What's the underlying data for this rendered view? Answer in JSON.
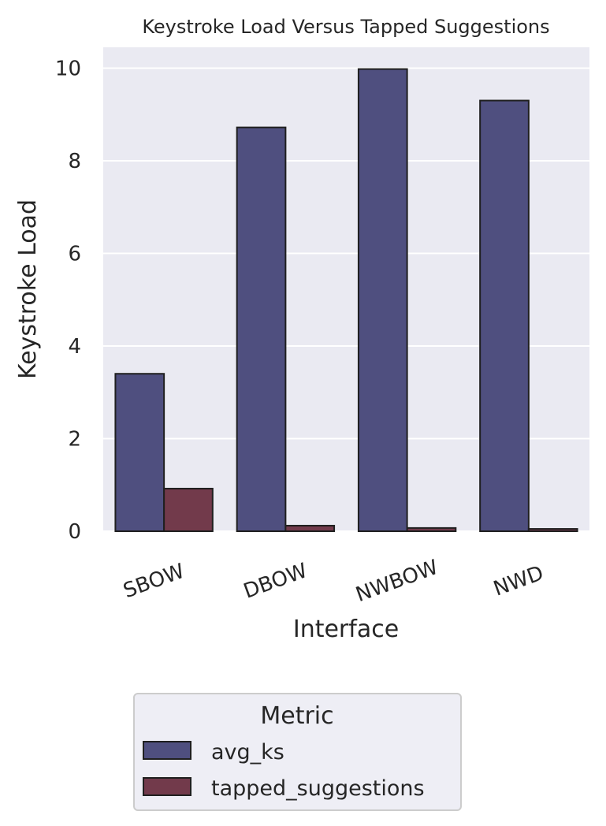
{
  "chart_data": {
    "type": "bar",
    "title": "Keystroke Load Versus Tapped Suggestions",
    "xlabel": "Interface",
    "ylabel": "Keystroke Load",
    "categories": [
      "SBOW",
      "DBOW",
      "NWBOW",
      "NWD"
    ],
    "series": [
      {
        "name": "avg_ks",
        "values": [
          3.4,
          8.72,
          9.98,
          9.3
        ],
        "color": "#4f4f7f"
      },
      {
        "name": "tapped_suggestions",
        "values": [
          0.92,
          0.12,
          0.07,
          0.05
        ],
        "color": "#723a4b"
      }
    ],
    "ylim": [
      0,
      10.45
    ],
    "yticks": [
      0,
      2,
      4,
      6,
      8,
      10
    ],
    "grid": true,
    "legend": {
      "title": "Metric",
      "placement": "bottom-center"
    },
    "colors": {
      "plot_background": "#eaeaf2",
      "grid": "#ffffff",
      "bar_edge": "#1f1f1f"
    }
  }
}
